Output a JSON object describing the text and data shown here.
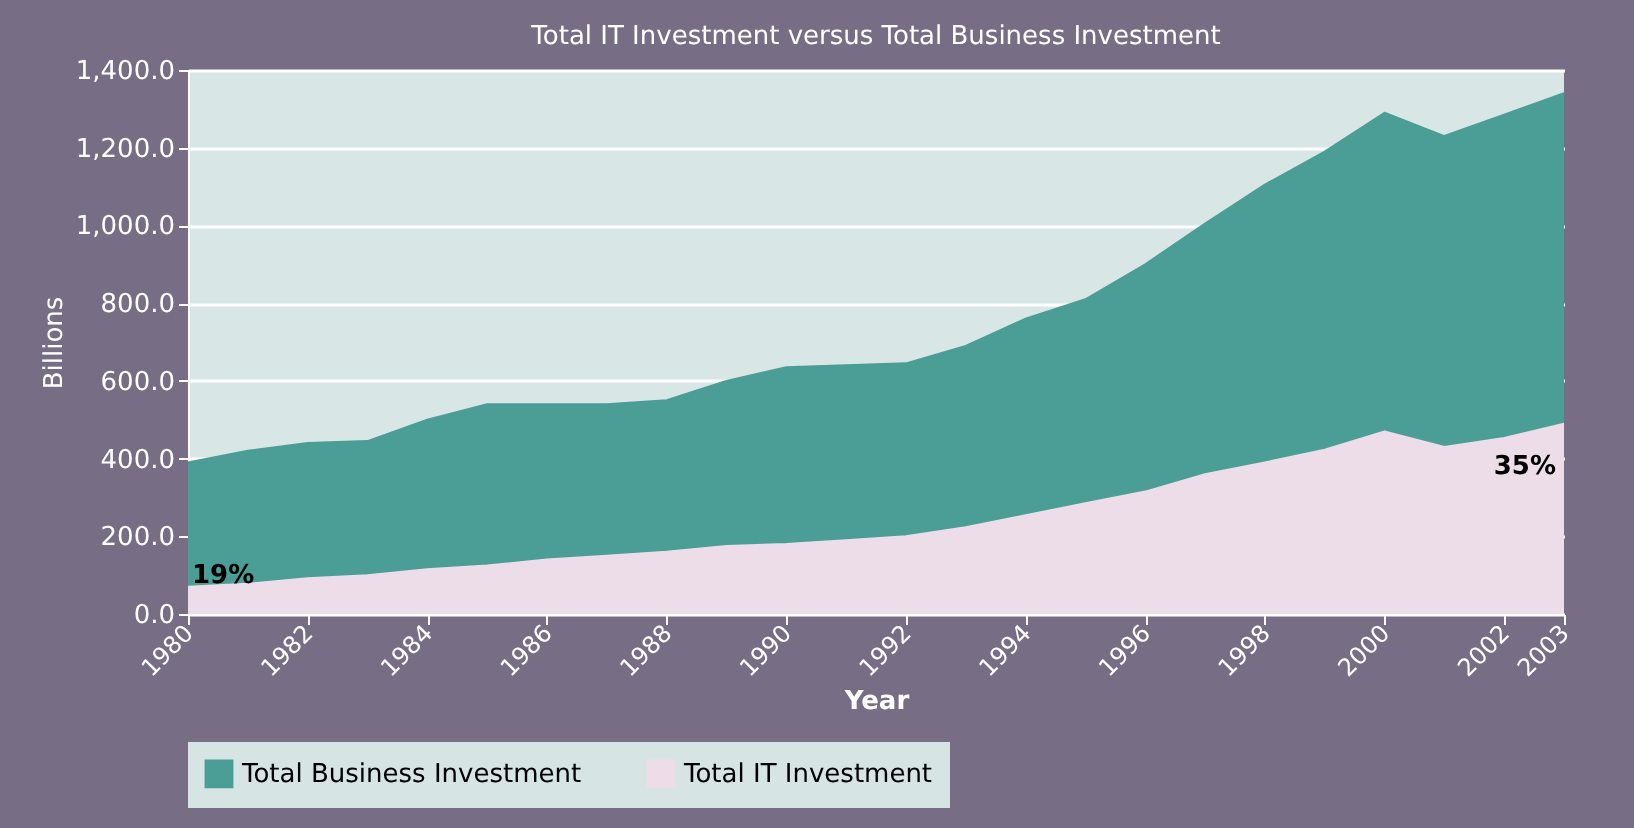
{
  "chart_data": {
    "type": "area",
    "title": "Total IT Investment versus Total Business Investment",
    "xlabel": "Year",
    "ylabel": "Billions",
    "x": [
      1980,
      1981,
      1982,
      1983,
      1984,
      1985,
      1986,
      1987,
      1988,
      1989,
      1990,
      1991,
      1992,
      1993,
      1994,
      1995,
      1996,
      1997,
      1998,
      1999,
      2000,
      2001,
      2002,
      2003
    ],
    "series": [
      {
        "name": "Total Business Investment",
        "color": "#4a9e96",
        "values": [
          390,
          420,
          440,
          445,
          500,
          540,
          540,
          540,
          550,
          600,
          635,
          640,
          645,
          690,
          760,
          810,
          900,
          1005,
          1105,
          1190,
          1290,
          1230,
          1285,
          1340
        ]
      },
      {
        "name": "Total IT Investment",
        "color": "#ecdde8",
        "values": [
          70,
          78,
          92,
          100,
          115,
          125,
          140,
          150,
          160,
          175,
          180,
          190,
          200,
          223,
          254,
          285,
          315,
          360,
          390,
          423,
          470,
          430,
          453,
          490
        ]
      }
    ],
    "xlim": [
      1980,
      2003
    ],
    "xticks": [
      1980,
      1982,
      1984,
      1986,
      1988,
      1990,
      1992,
      1994,
      1996,
      1998,
      2000,
      2002,
      2003
    ],
    "ylim": [
      0,
      1400
    ],
    "yticks": [
      {
        "value": 0,
        "label": "0.0"
      },
      {
        "value": 200,
        "label": "200.0"
      },
      {
        "value": 400,
        "label": "400.0"
      },
      {
        "value": 600,
        "label": "600.0"
      },
      {
        "value": 800,
        "label": "800.0"
      },
      {
        "value": 1000,
        "label": "1,000.0"
      },
      {
        "value": 1200,
        "label": "1,200.0"
      },
      {
        "value": 1400,
        "label": "1,400.0"
      }
    ],
    "annotations": [
      {
        "text": "19%",
        "x": 1980,
        "y": 100
      },
      {
        "text": "35%",
        "x": 2003,
        "y": 380
      }
    ],
    "grid": "y",
    "legend": "bottom"
  }
}
